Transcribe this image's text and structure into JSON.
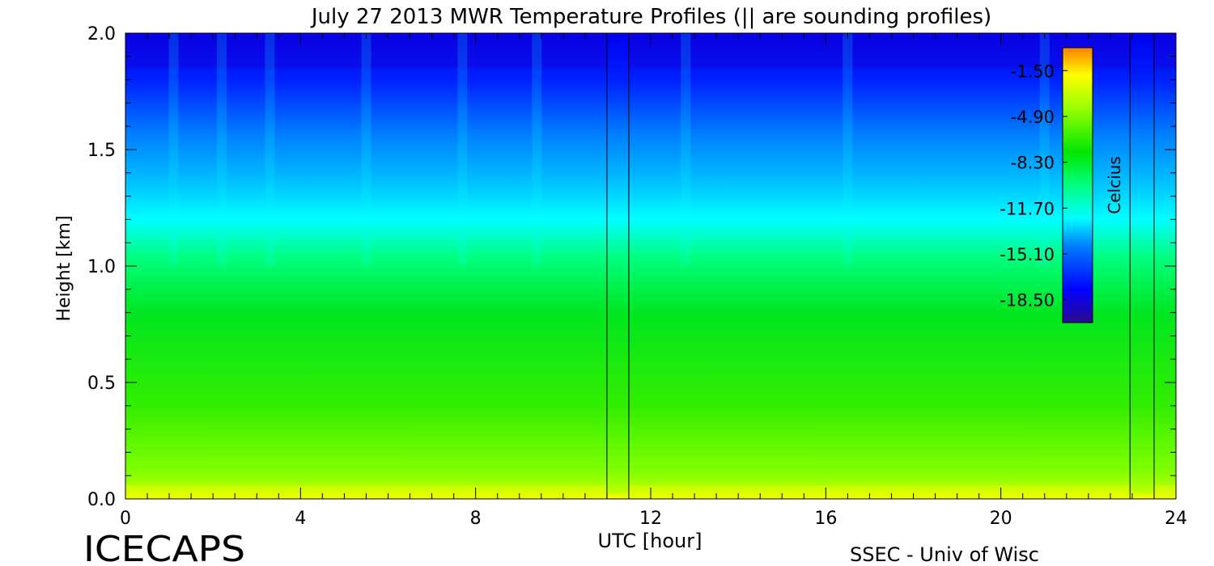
{
  "chart_data": {
    "type": "heatmap",
    "title": "July 27 2013 MWR Temperature Profiles (|| are sounding profiles)",
    "xlabel": "UTC [hour]",
    "ylabel": "Height [km]",
    "xlim": [
      0,
      24
    ],
    "ylim": [
      0,
      2.0
    ],
    "x_ticks": [
      "0",
      "4",
      "8",
      "12",
      "16",
      "20",
      "24"
    ],
    "y_ticks": [
      "0.0",
      "0.5",
      "1.0",
      "1.5",
      "2.0"
    ],
    "colorbar": {
      "label": "Celcius",
      "range": [
        -20.2,
        0.2
      ],
      "ticks": [
        "-1.50",
        "-4.90",
        "-8.30",
        "-11.70",
        "-15.10",
        "-18.50"
      ]
    },
    "sounding_profiles_utc": [
      11.0,
      11.5,
      22.95,
      23.5
    ],
    "temperature_profile_approx": {
      "height_km": [
        0.0,
        0.05,
        0.2,
        0.5,
        0.8,
        1.0,
        1.2,
        1.4,
        1.6,
        1.8,
        2.0
      ],
      "temperature_c": [
        -3.0,
        -5.0,
        -6.5,
        -7.5,
        -8.5,
        -10.0,
        -12.0,
        -14.0,
        -16.0,
        -17.5,
        -18.5
      ]
    },
    "colors": {
      "ramp": [
        "#2d0a8c",
        "#0000ff",
        "#0080ff",
        "#00ffff",
        "#00ff80",
        "#00e600",
        "#99ff00",
        "#ffff00",
        "#ff8000"
      ]
    }
  },
  "footer": {
    "left": "ICECAPS",
    "right": "SSEC - Univ of Wisc"
  }
}
